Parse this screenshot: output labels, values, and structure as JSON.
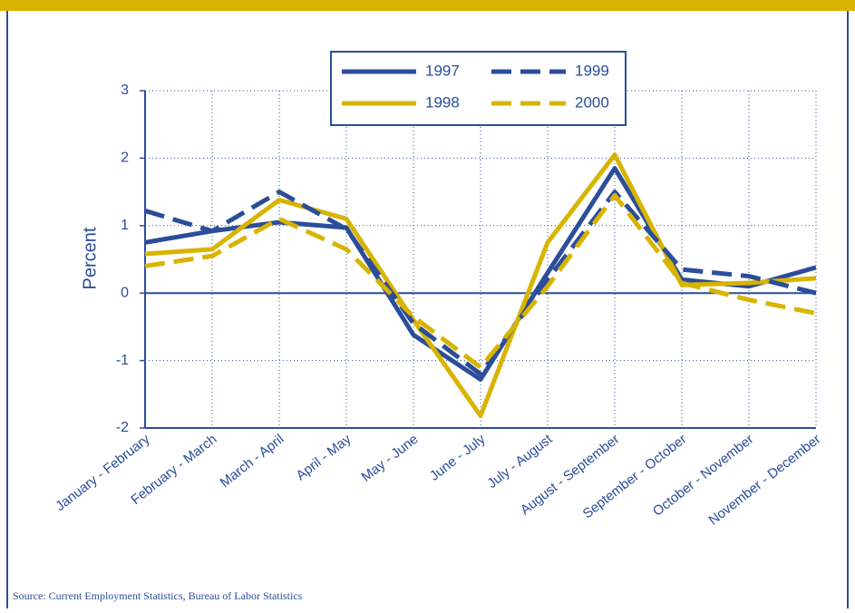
{
  "chart_data": {
    "type": "line",
    "y_label": "Percent",
    "source": "Source: Current Employment Statistics, Bureau of Labor Statistics",
    "categories": [
      "January - February",
      "February - March",
      "March - April",
      "April - May",
      "May - June",
      "June - July",
      "July - August",
      "August - September",
      "September - October",
      "October - November",
      "November - December"
    ],
    "series": [
      {
        "name": "1997",
        "color": "#2b4d9a",
        "style": "solid",
        "values": [
          0.75,
          0.92,
          1.05,
          0.97,
          -0.62,
          -1.28,
          0.3,
          1.85,
          0.2,
          0.1,
          0.38
        ]
      },
      {
        "name": "1998",
        "color": "#d8b400",
        "style": "solid",
        "values": [
          0.58,
          0.65,
          1.38,
          1.1,
          -0.4,
          -1.82,
          0.75,
          2.05,
          0.12,
          0.15,
          0.22
        ]
      },
      {
        "name": "1999",
        "color": "#2b4d9a",
        "style": "dashed",
        "values": [
          1.22,
          0.92,
          1.5,
          0.95,
          -0.45,
          -1.2,
          0.2,
          1.5,
          0.35,
          0.25,
          0.0
        ]
      },
      {
        "name": "2000",
        "color": "#d8b400",
        "style": "dashed",
        "values": [
          0.4,
          0.55,
          1.1,
          0.65,
          -0.35,
          -1.1,
          0.1,
          1.45,
          0.15,
          -0.1,
          -0.3
        ]
      }
    ],
    "ylim": [
      -2,
      3
    ],
    "yticks": [
      -2,
      -1,
      0,
      1,
      2,
      3
    ],
    "grid": true,
    "legend": "top"
  }
}
